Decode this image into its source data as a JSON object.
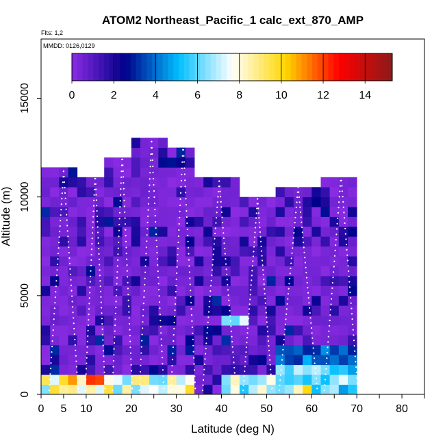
{
  "chart_data": {
    "type": "heatmap",
    "title": "ATOM2 Northeast_Pacific_1 calc_ext_870_AMP",
    "flights_note": "Flts: 1,2",
    "dates_note": "MMDD: 0126,0129",
    "xlabel": "Latitude (deg N)",
    "ylabel": "Altitude (m)",
    "xlim": [
      0,
      85
    ],
    "ylim": [
      0,
      18000
    ],
    "x_ticks": [
      0,
      5,
      10,
      20,
      30,
      40,
      50,
      60,
      70,
      80
    ],
    "x_minor_ticks": [
      15,
      25,
      35,
      45,
      55,
      65,
      75,
      85
    ],
    "y_ticks": [
      0,
      5000,
      10000,
      15000
    ],
    "colorbar": {
      "range": [
        0,
        15.3
      ],
      "ticks": [
        0,
        2,
        4,
        6,
        8,
        10,
        12,
        14
      ],
      "colors": [
        "#8a2be2",
        "#00008b",
        "#00bfff",
        "#ffffff",
        "#ffd700",
        "#ff0000",
        "#8b1a1a"
      ]
    },
    "cell_size": {
      "lat_deg": 2,
      "alt_m": 500
    },
    "profiles": [
      {
        "lat_range": [
          1,
          9
        ],
        "top_alt": 11300
      },
      {
        "lat_range": [
          9,
          15
        ],
        "top_alt": 11200
      },
      {
        "lat_range": [
          15,
          21
        ],
        "top_alt": 12200
      },
      {
        "lat_range": [
          21,
          28
        ],
        "top_alt": 12800
      },
      {
        "lat_range": [
          28,
          35
        ],
        "top_alt": 12700
      },
      {
        "lat_range": [
          35,
          44
        ],
        "top_alt": 10800
      },
      {
        "lat_range": [
          44,
          52
        ],
        "top_alt": 9900
      },
      {
        "lat_range": [
          52,
          62
        ],
        "top_alt": 10500
      },
      {
        "lat_range": [
          62,
          71
        ],
        "top_alt": 11100
      }
    ],
    "enhanced_regions": [
      {
        "lat_range": [
          0,
          34
        ],
        "alt_range": [
          0,
          1000
        ],
        "value": 8
      },
      {
        "lat_range": [
          7,
          15
        ],
        "alt_range": [
          500,
          1000
        ],
        "value": 10
      },
      {
        "lat_range": [
          41,
          52
        ],
        "alt_range": [
          0,
          1000
        ],
        "value": 7
      },
      {
        "lat_range": [
          52,
          70
        ],
        "alt_range": [
          0,
          1500
        ],
        "value": 6
      },
      {
        "lat_range": [
          56,
          60
        ],
        "alt_range": [
          0,
          500
        ],
        "value": 11
      },
      {
        "lat_range": [
          40,
          46
        ],
        "alt_range": [
          3500,
          4000
        ],
        "value": 6
      },
      {
        "lat_range": [
          53,
          70
        ],
        "alt_range": [
          1500,
          2500
        ],
        "value": 4
      }
    ]
  }
}
